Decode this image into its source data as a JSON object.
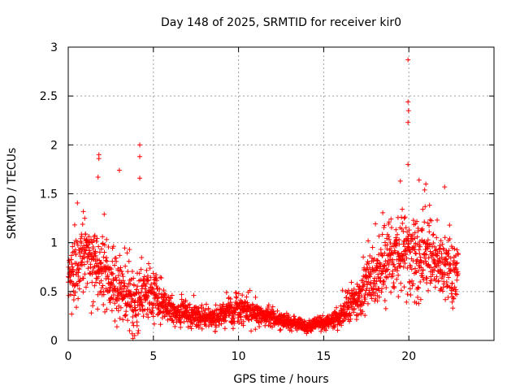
{
  "chart_data": {
    "type": "scatter",
    "title": "Day 148 of 2025, SRMTID for receiver kir0",
    "xlabel": "GPS time / hours",
    "ylabel": "SRMTID / TECUs",
    "xlim": [
      0,
      25
    ],
    "ylim": [
      0,
      3
    ],
    "xticks": [
      0,
      5,
      10,
      15,
      20
    ],
    "xtick_labels": [
      "0",
      "5",
      "10",
      "15",
      "20"
    ],
    "yticks": [
      0,
      0.5,
      1,
      1.5,
      2,
      2.5,
      3
    ],
    "ytick_labels": [
      "0",
      "0.5",
      "1",
      "1.5",
      "2",
      "2.5",
      "3"
    ],
    "grid": true,
    "marker": "+",
    "color": "#ff0000",
    "series": [
      {
        "name": "SRMTID",
        "note": "trend of scatter cloud (hours, TECU) sampled from the plot",
        "x": [
          0.0,
          0.5,
          1.0,
          1.5,
          2.0,
          2.5,
          3.0,
          3.5,
          4.0,
          4.5,
          5.0,
          5.5,
          6.0,
          6.5,
          7.0,
          7.5,
          8.0,
          8.5,
          9.0,
          9.5,
          10.0,
          10.5,
          11.0,
          11.5,
          12.0,
          12.5,
          13.0,
          13.5,
          14.0,
          14.5,
          15.0,
          15.5,
          16.0,
          16.5,
          17.0,
          17.5,
          18.0,
          18.5,
          19.0,
          19.5,
          20.0,
          20.5,
          21.0,
          21.5,
          22.0,
          22.5,
          22.9
        ],
        "y": [
          0.55,
          0.75,
          0.9,
          0.8,
          0.7,
          0.6,
          0.5,
          0.45,
          0.35,
          0.5,
          0.45,
          0.4,
          0.3,
          0.28,
          0.26,
          0.25,
          0.22,
          0.22,
          0.25,
          0.3,
          0.3,
          0.3,
          0.28,
          0.25,
          0.22,
          0.2,
          0.18,
          0.17,
          0.13,
          0.17,
          0.17,
          0.2,
          0.25,
          0.35,
          0.45,
          0.55,
          0.65,
          0.75,
          0.85,
          0.85,
          0.85,
          0.8,
          0.85,
          0.8,
          0.75,
          0.7,
          0.65
        ],
        "spread": [
          0.25,
          0.3,
          0.3,
          0.3,
          0.3,
          0.25,
          0.25,
          0.25,
          0.25,
          0.25,
          0.2,
          0.15,
          0.12,
          0.1,
          0.1,
          0.1,
          0.08,
          0.08,
          0.1,
          0.12,
          0.12,
          0.12,
          0.1,
          0.08,
          0.07,
          0.06,
          0.06,
          0.05,
          0.05,
          0.05,
          0.05,
          0.06,
          0.1,
          0.15,
          0.18,
          0.2,
          0.25,
          0.3,
          0.3,
          0.35,
          0.35,
          0.35,
          0.35,
          0.3,
          0.3,
          0.25,
          0.25
        ],
        "notable_points": [
          {
            "x": 19.95,
            "y": 2.87
          },
          {
            "x": 19.95,
            "y": 2.44
          },
          {
            "x": 19.98,
            "y": 2.35
          },
          {
            "x": 19.95,
            "y": 2.23
          },
          {
            "x": 4.2,
            "y": 2.0
          },
          {
            "x": 4.2,
            "y": 1.88
          },
          {
            "x": 1.8,
            "y": 1.9
          },
          {
            "x": 1.8,
            "y": 1.86
          },
          {
            "x": 3.0,
            "y": 1.74
          },
          {
            "x": 4.2,
            "y": 1.66
          },
          {
            "x": 1.75,
            "y": 1.67
          },
          {
            "x": 19.95,
            "y": 1.8
          },
          {
            "x": 20.6,
            "y": 1.64
          },
          {
            "x": 19.5,
            "y": 1.63
          },
          {
            "x": 21.0,
            "y": 1.6
          },
          {
            "x": 22.1,
            "y": 1.57
          },
          {
            "x": 3.6,
            "y": 0.1
          },
          {
            "x": 3.8,
            "y": 0.02
          },
          {
            "x": 3.9,
            "y": 0.05
          },
          {
            "x": 0.2,
            "y": 0.27
          }
        ]
      }
    ]
  }
}
